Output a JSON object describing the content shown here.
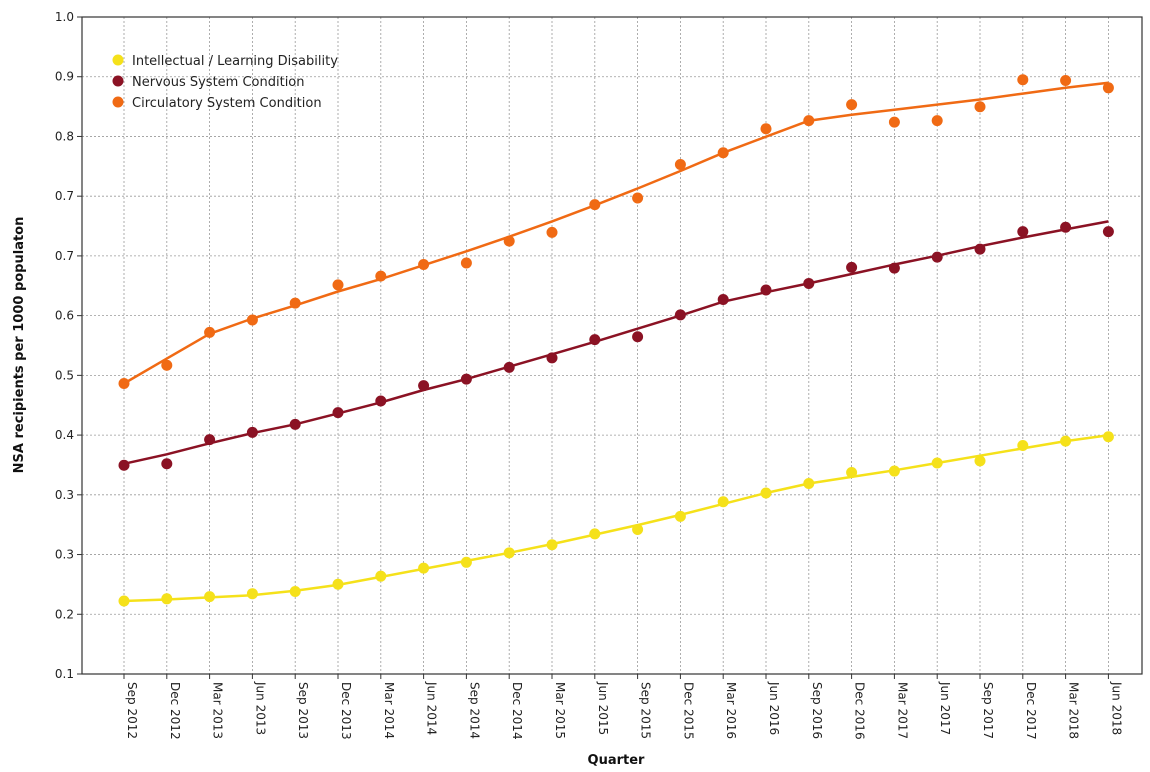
{
  "chart_data": {
    "type": "line",
    "xlabel": "Quarter",
    "ylabel": "NSA recipients per 1000 populaton",
    "categories": [
      "Sep 2012",
      "Dec 2012",
      "Mar 2013",
      "Jun 2013",
      "Sep 2013",
      "Dec 2013",
      "Mar 2014",
      "Jun 2014",
      "Sep 2014",
      "Dec 2014",
      "Mar 2015",
      "Jun 2015",
      "Sep 2015",
      "Dec 2015",
      "Mar 2016",
      "Jun 2016",
      "Sep 2016",
      "Dec 2016",
      "Mar 2017",
      "Jun 2017",
      "Sep 2017",
      "Dec 2017",
      "Mar 2018",
      "Jun 2018"
    ],
    "y_ticks": [
      "1.0",
      "0.9",
      "0.8",
      "0.7",
      "0.7",
      "0.6",
      "0.5",
      "0.4",
      "0.3",
      "0.3",
      "0.2",
      "0.1"
    ],
    "ylim": [
      0.1,
      1.0
    ],
    "grid": true,
    "legend_position": "top-left",
    "series": [
      {
        "name": "Intellectual / Learning Disability",
        "color": "#f5e11a",
        "values": [
          0.2,
          0.203,
          0.206,
          0.21,
          0.213,
          0.223,
          0.234,
          0.245,
          0.253,
          0.266,
          0.277,
          0.292,
          0.298,
          0.316,
          0.336,
          0.348,
          0.361,
          0.376,
          0.378,
          0.389,
          0.392,
          0.413,
          0.419,
          0.425
        ],
        "trend": [
          0.2,
          0.202,
          0.205,
          0.208,
          0.214,
          0.222,
          0.233,
          0.244,
          0.255,
          0.266,
          0.278,
          0.291,
          0.304,
          0.318,
          0.333,
          0.348,
          0.361,
          0.37,
          0.379,
          0.389,
          0.399,
          0.409,
          0.419,
          0.427
        ]
      },
      {
        "name": "Nervous System Condition",
        "color": "#8b1224",
        "values": [
          0.386,
          0.388,
          0.421,
          0.431,
          0.442,
          0.458,
          0.474,
          0.495,
          0.504,
          0.52,
          0.533,
          0.558,
          0.562,
          0.592,
          0.613,
          0.626,
          0.635,
          0.657,
          0.656,
          0.671,
          0.682,
          0.706,
          0.712,
          0.706
        ],
        "trend": [
          0.388,
          0.401,
          0.416,
          0.43,
          0.442,
          0.457,
          0.472,
          0.489,
          0.504,
          0.521,
          0.538,
          0.555,
          0.573,
          0.591,
          0.61,
          0.623,
          0.635,
          0.648,
          0.661,
          0.673,
          0.686,
          0.698,
          0.709,
          0.72
        ]
      },
      {
        "name": "Circulatory System Condition",
        "color": "#f06a14",
        "values": [
          0.498,
          0.523,
          0.568,
          0.585,
          0.608,
          0.633,
          0.645,
          0.661,
          0.663,
          0.693,
          0.705,
          0.743,
          0.752,
          0.798,
          0.814,
          0.847,
          0.858,
          0.88,
          0.856,
          0.858,
          0.877,
          0.914,
          0.913,
          0.903
        ],
        "trend": [
          0.498,
          0.532,
          0.566,
          0.587,
          0.605,
          0.624,
          0.641,
          0.66,
          0.679,
          0.699,
          0.72,
          0.742,
          0.765,
          0.789,
          0.814,
          0.836,
          0.858,
          0.866,
          0.873,
          0.88,
          0.887,
          0.895,
          0.903,
          0.91
        ]
      }
    ]
  }
}
